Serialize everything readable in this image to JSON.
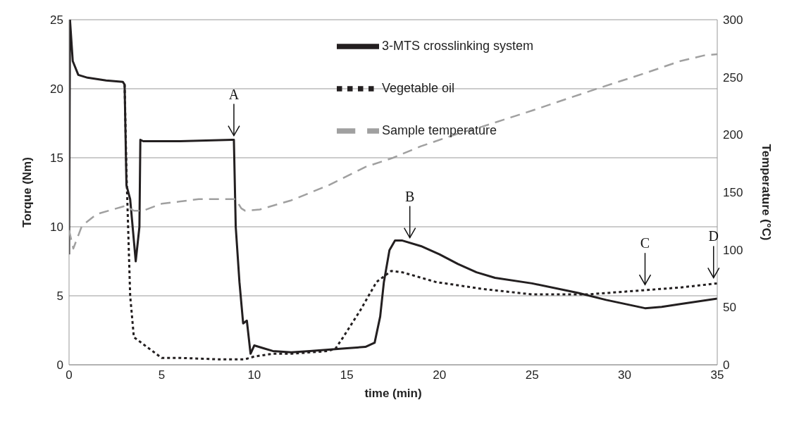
{
  "chart_data": {
    "type": "line",
    "xlabel": "time (min)",
    "ylabel": "Torque (Nm)",
    "y2label": "Temperature (°C)",
    "xlim": [
      0,
      35
    ],
    "xticks": [
      0,
      5,
      10,
      15,
      20,
      25,
      30,
      35
    ],
    "ylim": [
      0,
      25
    ],
    "yticks": [
      0,
      5,
      10,
      15,
      20,
      25
    ],
    "y2lim": [
      0,
      300
    ],
    "y2ticks": [
      0,
      50,
      100,
      150,
      200,
      250,
      300
    ],
    "grid": "y",
    "legend": "top",
    "marker": "none",
    "series": [
      {
        "name": "3-MTS crosslinking system",
        "color": "#231f20",
        "line_style": "solid",
        "x": [
          0,
          0.05,
          0.2,
          0.5,
          1,
          2,
          2.9,
          3.0,
          3.1,
          3.3,
          3.5,
          3.6,
          3.8,
          3.85,
          4,
          6,
          8.8,
          8.9,
          9.0,
          9.2,
          9.4,
          9.6,
          9.8,
          10,
          10.5,
          11,
          12,
          13,
          14,
          15,
          16,
          16.5,
          16.8,
          17,
          17.3,
          17.6,
          18,
          19,
          20,
          21,
          22,
          23,
          25,
          27.5,
          29,
          31.1,
          32,
          33,
          35
        ],
        "values": [
          8,
          25,
          22,
          21,
          20.8,
          20.6,
          20.5,
          20.3,
          13,
          12,
          9,
          7.5,
          10,
          16.3,
          16.2,
          16.2,
          16.3,
          16.3,
          10,
          6,
          3,
          3.2,
          0.8,
          1.4,
          1.2,
          1,
          0.9,
          1,
          1.1,
          1.2,
          1.3,
          1.6,
          3.5,
          6,
          8.3,
          9,
          9,
          8.6,
          8,
          7.3,
          6.7,
          6.3,
          5.9,
          5.2,
          4.7,
          4.1,
          4.2,
          4.4,
          4.8
        ]
      },
      {
        "name": "Vegetable oil",
        "color": "#231f20",
        "line_style": "dotted",
        "x": [
          3.0,
          3.1,
          3.3,
          3.5,
          4,
          4.5,
          5,
          6,
          8,
          9.5,
          10,
          11,
          12,
          13,
          14,
          14.4,
          14.8,
          15.75,
          16.6,
          17.4,
          18,
          19.8,
          22.3,
          25,
          28,
          31,
          33,
          35
        ],
        "values": [
          20.3,
          14,
          5,
          2,
          1.5,
          1,
          0.5,
          0.5,
          0.4,
          0.4,
          0.6,
          0.8,
          0.8,
          0.9,
          1,
          1.2,
          2,
          4,
          6,
          6.8,
          6.7,
          6,
          5.5,
          5.1,
          5.1,
          5.4,
          5.6,
          5.9
        ]
      },
      {
        "name": "Sample temperature",
        "color": "#a0a0a0",
        "line_style": "dashed",
        "axis": "y2",
        "x": [
          0,
          0.23,
          0.7,
          1.5,
          3,
          3.5,
          4,
          5,
          7,
          9,
          9.3,
          9.5,
          10.3,
          12,
          14,
          16,
          17.5,
          19,
          21,
          22.3,
          25,
          28.5,
          31,
          33,
          34.3,
          35
        ],
        "values": [
          117,
          101,
          121,
          131,
          138,
          134,
          134,
          140,
          144,
          144,
          136,
          134,
          135,
          143,
          156,
          172,
          180,
          190,
          201,
          207,
          221,
          240,
          253,
          264,
          269,
          270
        ]
      }
    ],
    "annotations": [
      {
        "text": "A",
        "x": 8.9,
        "y": 16.3
      },
      {
        "text": "B",
        "x": 18.4,
        "y": 8.9
      },
      {
        "text": "C",
        "x": 31.1,
        "y": 5.5
      },
      {
        "text": "D",
        "x": 34.8,
        "y": 6
      }
    ]
  }
}
